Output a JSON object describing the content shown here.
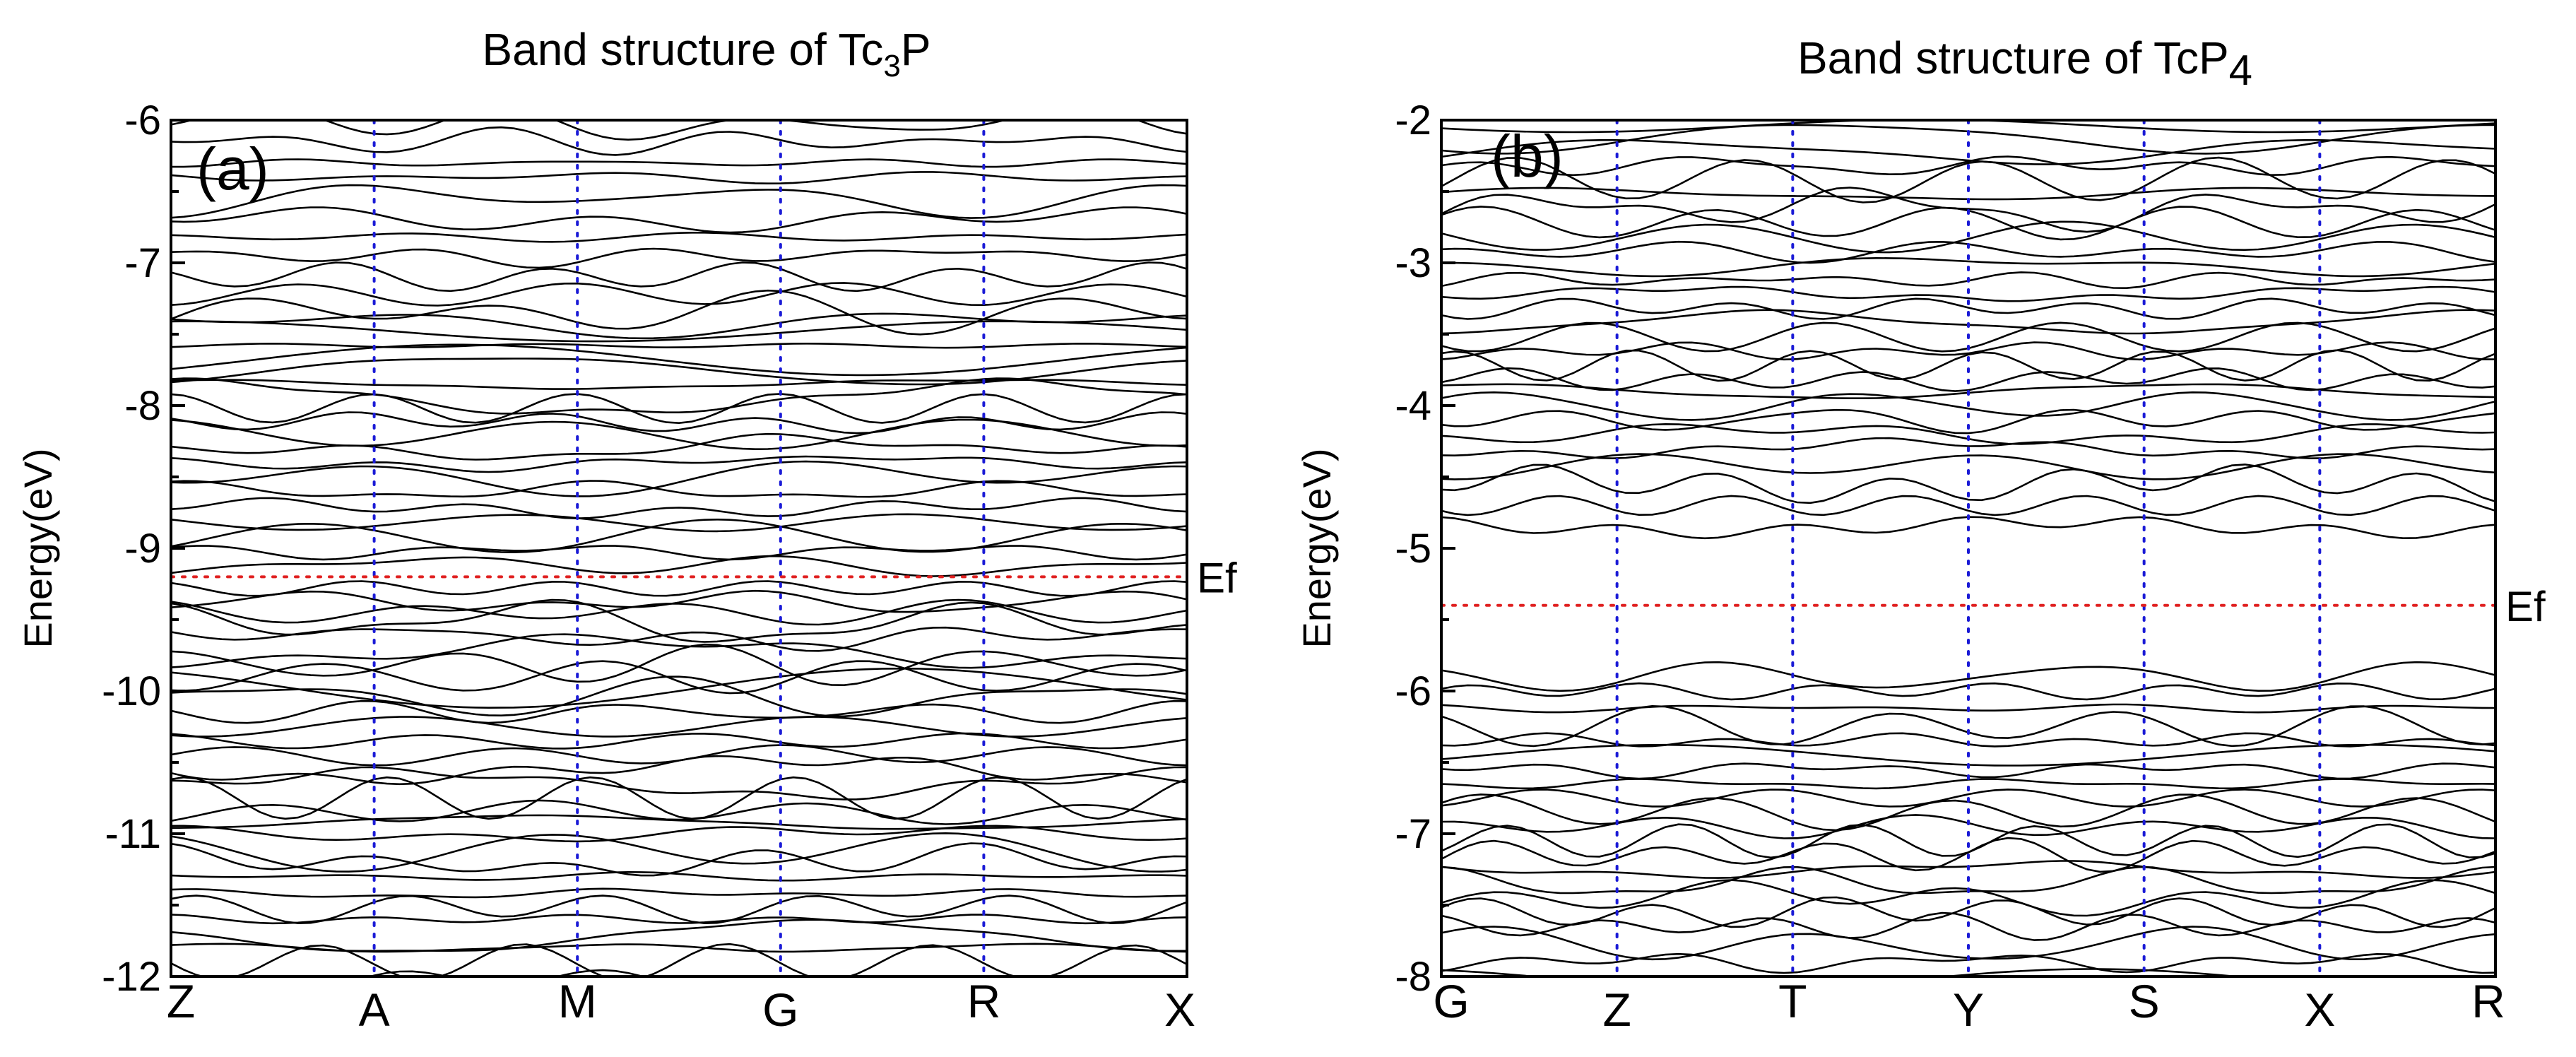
{
  "colors": {
    "band_line": "#000000",
    "kpoint_line": "#1a1ad6",
    "fermi_line": "#e02020",
    "axis": "#000000",
    "background": "#ffffff"
  },
  "chart_data": [
    {
      "type": "line",
      "title_main": "Band structure of Tc",
      "title_sub": "3",
      "title_tail": "P",
      "panel_label": "(a)",
      "ylabel": "Energy(eV)",
      "xlabel": "",
      "ylim": [
        -12,
        -6
      ],
      "yticks": [
        -12,
        -11,
        -10,
        -9,
        -8,
        -7,
        -6
      ],
      "ytick_labels": [
        "-12",
        "-11",
        "-10",
        "-9",
        "-8",
        "-7",
        "-6"
      ],
      "kpoints": [
        "Z",
        "A",
        "M",
        "G",
        "R",
        "X"
      ],
      "kpoint_positions": [
        0,
        1,
        2,
        3,
        4,
        5
      ],
      "fermi_level": -9.2,
      "fermi_label": "Ef",
      "band_base_energies": [
        -12.05,
        -11.9,
        -11.8,
        -11.72,
        -11.6,
        -11.52,
        -11.42,
        -11.3,
        -11.2,
        -11.12,
        -11.0,
        -10.92,
        -10.85,
        -10.75,
        -10.65,
        -10.55,
        -10.45,
        -10.35,
        -10.25,
        -10.15,
        -10.05,
        -9.98,
        -9.9,
        -9.82,
        -9.72,
        -9.62,
        -9.52,
        -9.45,
        -9.38,
        -9.28,
        -9.12,
        -9.02,
        -8.92,
        -8.82,
        -8.72,
        -8.6,
        -8.5,
        -8.4,
        -8.3,
        -8.2,
        -8.12,
        -8.02,
        -7.95,
        -7.85,
        -7.75,
        -7.68,
        -7.58,
        -7.48,
        -7.42,
        -7.35,
        -7.22,
        -7.1,
        -6.95,
        -6.82,
        -6.7,
        -6.55,
        -6.4,
        -6.3,
        -6.15,
        -6.02
      ]
    },
    {
      "type": "line",
      "title_main": "Band structure of TcP",
      "title_sub": "4",
      "title_tail": "",
      "panel_label": "(b)",
      "ylabel": "Energy(eV)",
      "xlabel": "",
      "ylim": [
        -8,
        -2
      ],
      "yticks": [
        -8,
        -7,
        -6,
        -5,
        -4,
        -3,
        -2
      ],
      "ytick_labels": [
        "-8",
        "-7",
        "-6",
        "-5",
        "-4",
        "-3",
        "-2"
      ],
      "kpoints": [
        "G",
        "Z",
        "T",
        "Y",
        "S",
        "X",
        "R"
      ],
      "kpoint_positions": [
        0,
        1,
        2,
        3,
        4,
        5,
        6
      ],
      "fermi_level": -5.4,
      "fermi_label": "Ef",
      "band_base_energies": [
        -8.02,
        -7.9,
        -7.78,
        -7.65,
        -7.55,
        -7.45,
        -7.35,
        -7.25,
        -7.15,
        -7.05,
        -6.95,
        -6.85,
        -6.75,
        -6.65,
        -6.55,
        -6.45,
        -6.35,
        -6.25,
        -6.12,
        -6.0,
        -5.9,
        -4.85,
        -4.7,
        -4.55,
        -4.42,
        -4.3,
        -4.2,
        -4.1,
        -4.0,
        -3.9,
        -3.82,
        -3.72,
        -3.62,
        -3.52,
        -3.42,
        -3.32,
        -3.22,
        -3.12,
        -3.02,
        -2.92,
        -2.82,
        -2.72,
        -2.62,
        -2.52,
        -2.42,
        -2.32,
        -2.22,
        -2.12,
        -2.04
      ]
    }
  ]
}
